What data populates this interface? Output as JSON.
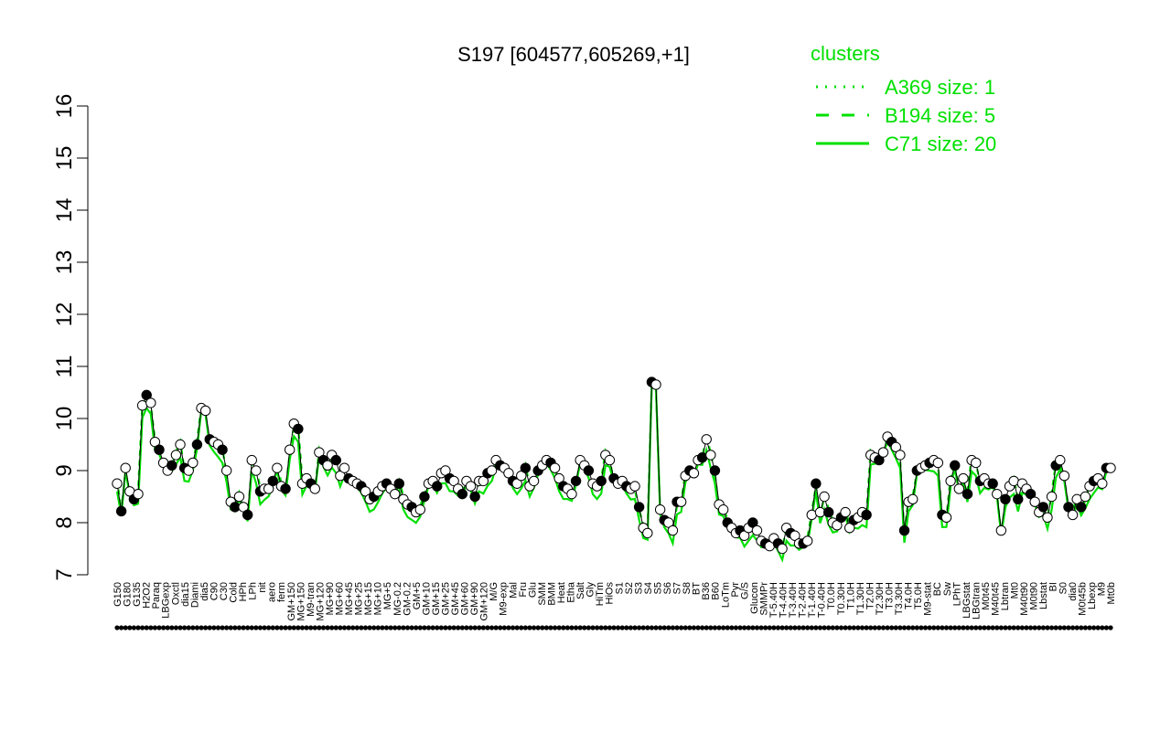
{
  "chart_data": {
    "type": "line",
    "title": "S197 [604577,605269,+1]",
    "xlabel": "",
    "ylabel": "",
    "ylim": [
      7,
      16
    ],
    "y_ticks": [
      7,
      8,
      9,
      10,
      11,
      12,
      13,
      14,
      15,
      16
    ],
    "grid": false,
    "legend": {
      "title": "clusters",
      "placement": "top-right",
      "entries": [
        {
          "label": "A369 size: 1",
          "style": "dotted"
        },
        {
          "label": "B194 size: 5",
          "style": "dashed"
        },
        {
          "label": "C71 size: 20",
          "style": "solid"
        }
      ]
    },
    "colors": {
      "axis": "#000000",
      "clusters": "#00e000",
      "point_fill_open": "#ffffff",
      "point_fill_dark": "#000000"
    },
    "x_tick_labels": [
      "G150",
      "G180",
      "G135",
      "H2O2",
      "Paraq",
      "LBGexp",
      "Oxctl",
      "dia15",
      "Diami",
      "dia5",
      "C90",
      "C30",
      "Cold",
      "HPh",
      "LPh",
      "nit",
      "aero",
      "ferm",
      "GM+150",
      "MG+150",
      "M9-tran",
      "MG+120",
      "MG+90",
      "MG+60",
      "MG+45",
      "MG+25",
      "MG+15",
      "MG+10",
      "MG+5",
      "MG-0.2",
      "GM-0.2",
      "GM+5",
      "GM+10",
      "GM+15",
      "GM+25",
      "GM+45",
      "GM+60",
      "GM+90",
      "GM+120",
      "M/G",
      "M9-exp",
      "Mal",
      "Fru",
      "Glu",
      "SMM",
      "BMM",
      "Heat",
      "Etha",
      "Salt",
      "Gly",
      "HiTm",
      "HiOs",
      "S1",
      "S2",
      "S3",
      "S4",
      "S5",
      "S6",
      "S7",
      "S8",
      "BT",
      "B36",
      "B60",
      "LoTm",
      "Pyr",
      "G/S",
      "Glucon",
      "SMMPr",
      "T-5.40H",
      "T-4.40H",
      "T-3.40H",
      "T-2.40H",
      "T-1.40H",
      "T-0.40H",
      "T0.0H",
      "T0.30H",
      "T1.0H",
      "T1.30H",
      "T2.0H",
      "T2.30H",
      "T3.0H",
      "T3.30H",
      "T4.0H",
      "T5.0H",
      "M9-stat",
      "BC",
      "Sw",
      "LPhT",
      "LBGstat",
      "LBGtran",
      "M0t45",
      "M40t45",
      "Lbtran",
      "Mt0",
      "M40t90",
      "M0t90",
      "Lbstat",
      "BI",
      "S0",
      "dia0",
      "M0t45b",
      "Lbexp",
      "M9",
      "Mt0b"
    ],
    "series": [
      {
        "values": [
          8.75,
          8.22,
          9.05,
          8.6,
          8.45,
          8.55,
          10.25,
          10.45,
          10.3,
          9.55,
          9.4,
          9.15,
          9.0,
          9.1,
          9.3,
          9.5,
          9.05,
          9.0,
          9.15,
          9.5,
          10.2,
          10.15,
          9.6,
          9.55,
          9.5,
          9.4,
          9.0,
          8.4,
          8.3,
          8.5,
          8.3,
          8.15,
          9.2,
          9.0,
          8.6,
          8.65,
          8.65,
          8.8,
          9.05,
          8.7,
          8.65,
          9.4,
          9.9,
          9.8,
          8.75,
          8.85,
          8.75,
          8.65,
          9.35,
          9.2,
          9.1,
          9.3,
          9.2,
          8.9,
          9.05,
          8.85,
          8.8,
          8.75,
          8.7,
          8.6,
          8.45,
          8.5,
          8.6,
          8.7,
          8.75,
          8.65,
          8.55,
          8.75,
          8.45,
          8.35,
          8.3,
          8.2,
          8.25,
          8.5,
          8.75,
          8.8,
          8.7,
          8.95,
          9.0,
          8.85,
          8.8,
          8.65,
          8.55,
          8.8,
          8.7,
          8.5,
          8.8,
          8.8,
          8.95,
          9.0,
          9.2,
          9.1,
          9.05,
          8.95,
          8.8,
          8.75,
          8.9,
          9.05,
          8.7,
          8.8,
          9.0,
          9.1,
          9.2,
          9.15,
          9.05,
          8.85,
          8.7,
          8.65,
          8.55,
          8.8,
          9.2,
          9.1,
          9.0,
          8.75,
          8.7,
          8.8,
          9.3,
          9.2,
          8.85,
          8.75,
          8.8,
          8.7,
          8.65,
          8.7,
          8.3,
          7.9,
          7.8,
          10.7,
          10.65,
          8.25,
          8.05,
          8.0,
          7.85,
          8.4,
          8.4,
          8.9,
          9.0,
          8.95,
          9.2,
          9.25,
          9.6,
          9.3,
          9.0,
          8.35,
          8.25,
          8.0,
          7.9,
          7.8,
          7.85,
          7.75,
          7.9,
          8.0,
          7.85,
          7.65,
          7.6,
          7.55,
          7.7,
          7.6,
          7.5,
          7.9,
          7.8,
          7.75,
          7.6,
          7.6,
          7.65,
          8.15,
          8.75,
          8.2,
          8.5,
          8.2,
          8.0,
          7.95,
          8.1,
          8.2,
          7.9,
          8.05,
          8.1,
          8.2,
          8.15,
          9.3,
          9.25,
          9.2,
          9.35,
          9.65,
          9.55,
          9.45,
          9.3,
          7.85,
          8.4,
          8.45,
          9.0,
          9.05,
          9.1,
          9.15,
          9.2,
          9.15,
          8.15,
          8.1,
          8.8,
          9.1,
          8.65,
          8.85,
          8.55,
          9.2,
          9.15,
          8.8,
          8.85,
          8.75,
          8.75,
          8.55,
          7.85,
          8.45,
          8.7,
          8.8,
          8.45,
          8.75,
          8.65,
          8.55,
          8.4,
          8.2,
          8.3,
          8.1,
          8.5,
          9.1,
          9.2,
          8.9,
          8.3,
          8.15,
          8.45,
          8.3,
          8.5,
          8.7,
          8.8,
          8.85,
          8.75,
          9.05,
          9.05
        ]
      }
    ]
  }
}
